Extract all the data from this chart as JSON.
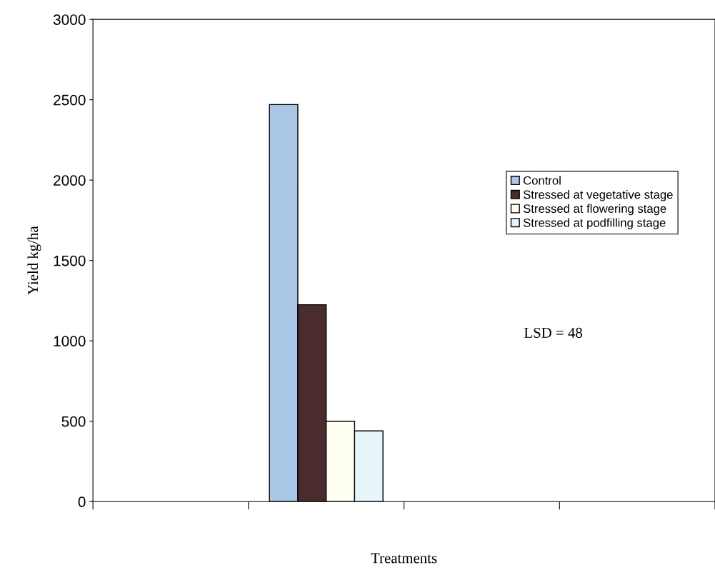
{
  "chart_data": {
    "type": "bar",
    "xlabel": "Treatments",
    "ylabel": "Yield kg/ha",
    "categories": [
      null,
      null,
      null,
      null
    ],
    "series": [
      {
        "name": "Control",
        "color": "#a9c6e6",
        "values": [
          null,
          2470,
          null,
          null
        ]
      },
      {
        "name": "Stressed at vegetative stage",
        "color": "#4a2b2e",
        "values": [
          null,
          1225,
          null,
          null
        ]
      },
      {
        "name": "Stressed at flowering stage",
        "color": "#fffff2",
        "values": [
          null,
          500,
          null,
          null
        ]
      },
      {
        "name": "Stressed at podfilling stage",
        "color": "#e6f5fa",
        "values": [
          null,
          440,
          null,
          null
        ]
      }
    ],
    "ylim": [
      0,
      3000
    ],
    "yticks": [
      0,
      500,
      1000,
      1500,
      2000,
      2500,
      3000
    ],
    "annotations": [
      "LSD = 48"
    ],
    "grid": false,
    "legend": "right"
  }
}
